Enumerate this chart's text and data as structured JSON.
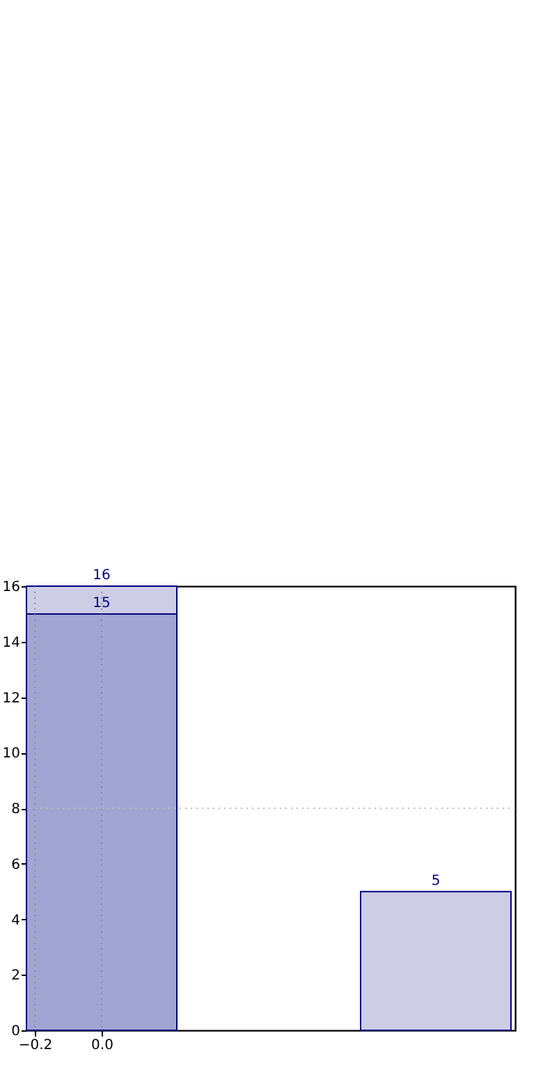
{
  "chart_data": {
    "type": "bar",
    "x": [
      0,
      1
    ],
    "stacked": true,
    "series": [
      {
        "color": "#a2a5d2",
        "values": [
          15,
          null
        ],
        "value_labels": [
          "15",
          null
        ]
      },
      {
        "color": "#cdcde6",
        "values": [
          1,
          5
        ]
      }
    ],
    "totals": [
      "16",
      "5"
    ],
    "xlim": [
      -0.225,
      1.2375
    ],
    "xticks": [
      {
        "value": -0.2,
        "label": "−0.2"
      },
      {
        "value": 0,
        "label": "0.0"
      }
    ],
    "ylim": [
      0,
      16
    ],
    "yticks": [
      0,
      2,
      4,
      6,
      8,
      10,
      12,
      14,
      16
    ],
    "grid": "x",
    "ref_lines": [
      {
        "axis": "y",
        "value": 8,
        "color": "#bbbbbb",
        "line_style": "dotted"
      }
    ]
  }
}
